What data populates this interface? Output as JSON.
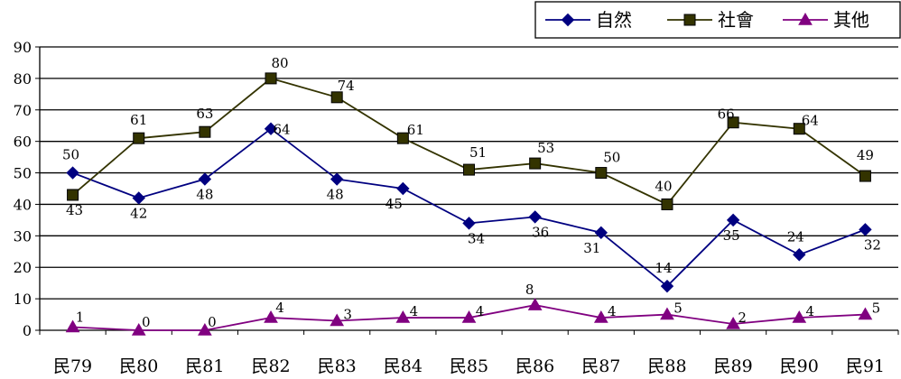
{
  "chart_data": {
    "type": "line",
    "title": "",
    "xlabel": "",
    "ylabel": "",
    "categories": [
      "民79",
      "民80",
      "民81",
      "民82",
      "民83",
      "民84",
      "民85",
      "民86",
      "民87",
      "民88",
      "民89",
      "民90",
      "民91"
    ],
    "ylim": [
      0,
      90
    ],
    "yticks": [
      0,
      10,
      20,
      30,
      40,
      50,
      60,
      70,
      80,
      90
    ],
    "grid": true,
    "legend_position": "top-right",
    "series": [
      {
        "name": "自然",
        "marker": "diamond",
        "color": "#000080",
        "values": [
          50,
          42,
          48,
          64,
          48,
          45,
          34,
          36,
          31,
          14,
          35,
          24,
          32
        ]
      },
      {
        "name": "社會",
        "marker": "square",
        "color": "#333300",
        "values": [
          43,
          61,
          63,
          80,
          74,
          61,
          51,
          53,
          50,
          40,
          66,
          64,
          49
        ]
      },
      {
        "name": "其他",
        "marker": "triangle",
        "color": "#800080",
        "values": [
          1,
          0,
          0,
          4,
          3,
          4,
          4,
          8,
          4,
          5,
          2,
          4,
          5
        ]
      }
    ]
  }
}
